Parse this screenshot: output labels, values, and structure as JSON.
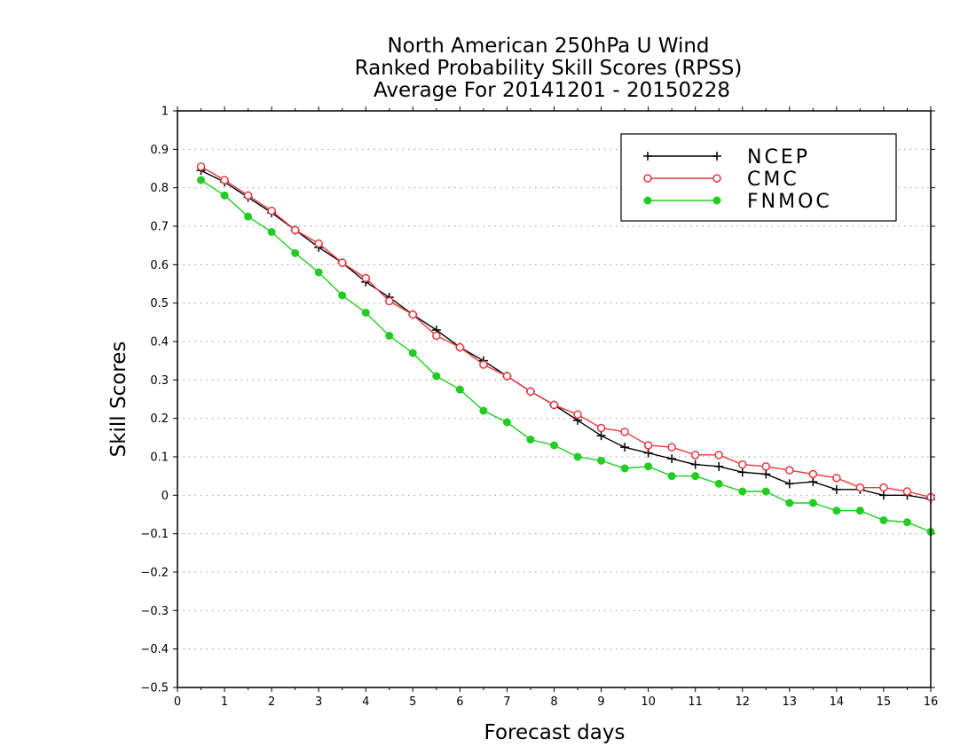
{
  "chart_data": {
    "type": "line",
    "title_lines": [
      "North American 250hPa U Wind",
      "Ranked Probability Skill Scores (RPSS)",
      "Average For 20141201 - 20150228"
    ],
    "xlabel": "Forecast days",
    "ylabel": "Skill Scores",
    "xlim": [
      0,
      16
    ],
    "ylim": [
      -0.5,
      1
    ],
    "xticks": [
      "0",
      "1",
      "2",
      "3",
      "4",
      "5",
      "6",
      "7",
      "8",
      "9",
      "10",
      "11",
      "12",
      "13",
      "14",
      "15",
      "16"
    ],
    "yticks": [
      "1",
      "0.9",
      "0.8",
      "0.7",
      "0.6",
      "0.5",
      "0.4",
      "0.3",
      "0.2",
      "0.1",
      "0",
      "−0.1",
      "−0.2",
      "−0.3",
      "−0.4",
      "−0.5"
    ],
    "grid": "horizontal-dotted",
    "legend_position": "top-right",
    "x": [
      0.5,
      1,
      1.5,
      2,
      2.5,
      3,
      3.5,
      4,
      4.5,
      5,
      5.5,
      6,
      6.5,
      7,
      7.5,
      8,
      8.5,
      9,
      9.5,
      10,
      10.5,
      11,
      11.5,
      12,
      12.5,
      13,
      13.5,
      14,
      14.5,
      15,
      15.5,
      16
    ],
    "series": [
      {
        "name": "NCEP",
        "color": "#000000",
        "marker": "plus",
        "values": [
          0.845,
          0.815,
          0.775,
          0.735,
          0.69,
          0.645,
          0.605,
          0.555,
          0.515,
          0.47,
          0.43,
          0.385,
          0.35,
          0.31,
          0.27,
          0.235,
          0.195,
          0.155,
          0.125,
          0.11,
          0.095,
          0.08,
          0.075,
          0.06,
          0.055,
          0.03,
          0.035,
          0.015,
          0.015,
          0.0,
          0.0,
          -0.01
        ]
      },
      {
        "name": "CMC",
        "color": "#e8383f",
        "marker": "open-circle",
        "values": [
          0.855,
          0.82,
          0.78,
          0.74,
          0.69,
          0.655,
          0.605,
          0.565,
          0.505,
          0.47,
          0.415,
          0.385,
          0.34,
          0.31,
          0.27,
          0.235,
          0.21,
          0.175,
          0.165,
          0.13,
          0.125,
          0.105,
          0.105,
          0.08,
          0.075,
          0.065,
          0.055,
          0.045,
          0.02,
          0.02,
          0.01,
          -0.005
        ]
      },
      {
        "name": "FNMOC",
        "color": "#22cc22",
        "marker": "filled-circle",
        "values": [
          0.82,
          0.78,
          0.725,
          0.685,
          0.63,
          0.58,
          0.52,
          0.475,
          0.415,
          0.37,
          0.31,
          0.275,
          0.22,
          0.19,
          0.145,
          0.13,
          0.1,
          0.09,
          0.07,
          0.075,
          0.05,
          0.05,
          0.03,
          0.01,
          0.01,
          -0.02,
          -0.02,
          -0.04,
          -0.04,
          -0.065,
          -0.07,
          -0.095
        ]
      }
    ]
  }
}
